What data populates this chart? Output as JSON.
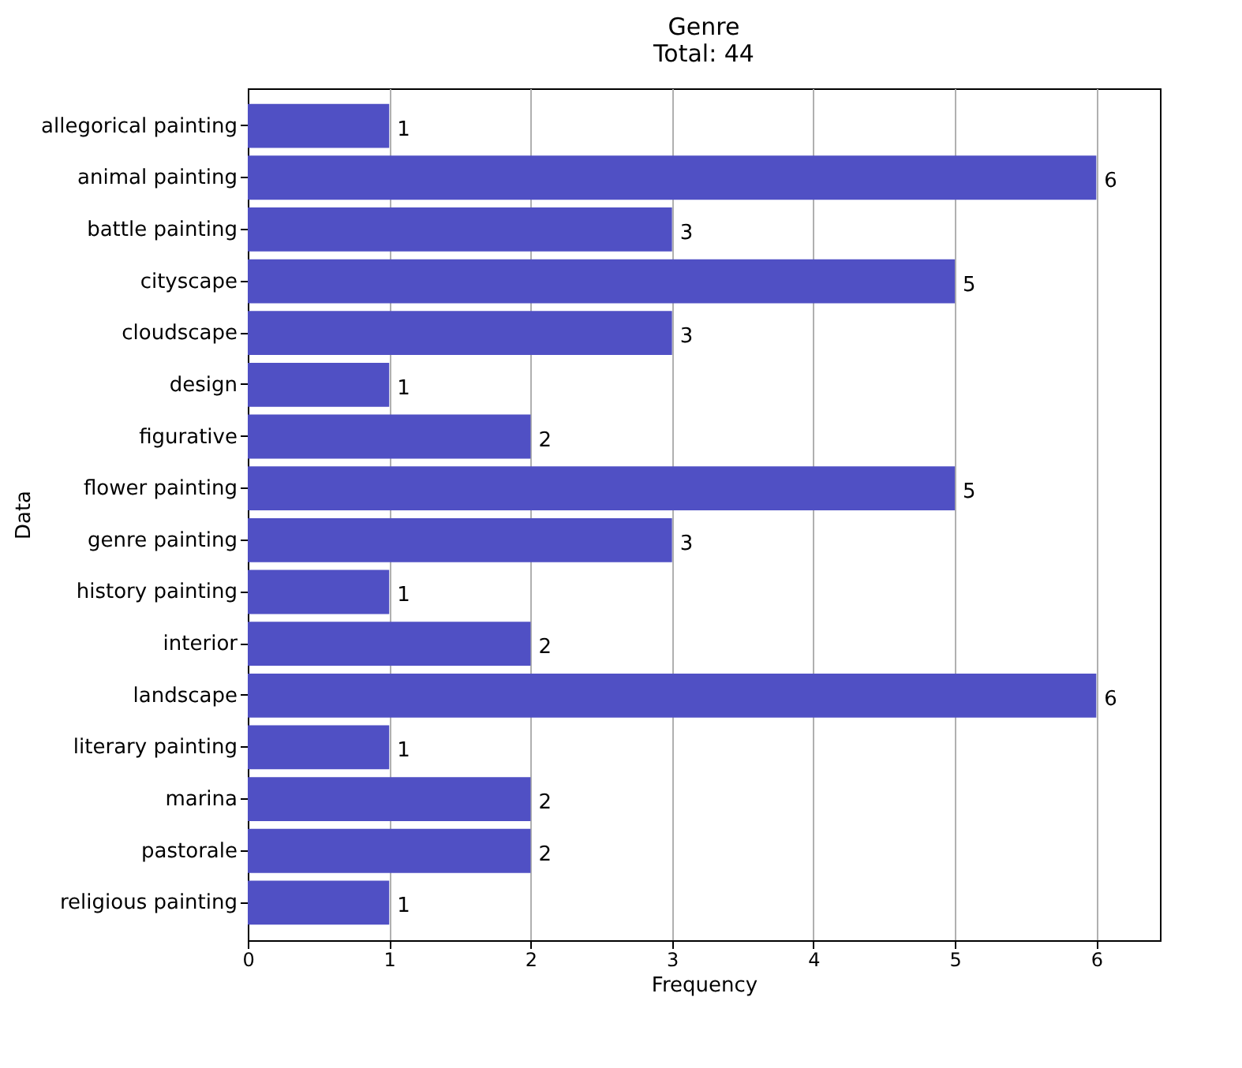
{
  "chart_data": {
    "type": "bar",
    "orientation": "horizontal",
    "title": "Genre",
    "subtitle": "Total: 44",
    "xlabel": "Frequency",
    "ylabel": "Data",
    "categories": [
      "allegorical painting",
      "animal painting",
      "battle painting",
      "cityscape",
      "cloudscape",
      "design",
      "figurative",
      "flower painting",
      "genre painting",
      "history painting",
      "interior",
      "landscape",
      "literary painting",
      "marina",
      "pastorale",
      "religious painting"
    ],
    "values": [
      1,
      6,
      3,
      5,
      3,
      1,
      2,
      5,
      3,
      1,
      2,
      6,
      1,
      2,
      2,
      1
    ],
    "color": "#5050c4",
    "xlim": [
      0,
      6.45
    ],
    "xticks": [
      0,
      1,
      2,
      3,
      4,
      5,
      6
    ],
    "grid": "x",
    "data_labels": true
  }
}
